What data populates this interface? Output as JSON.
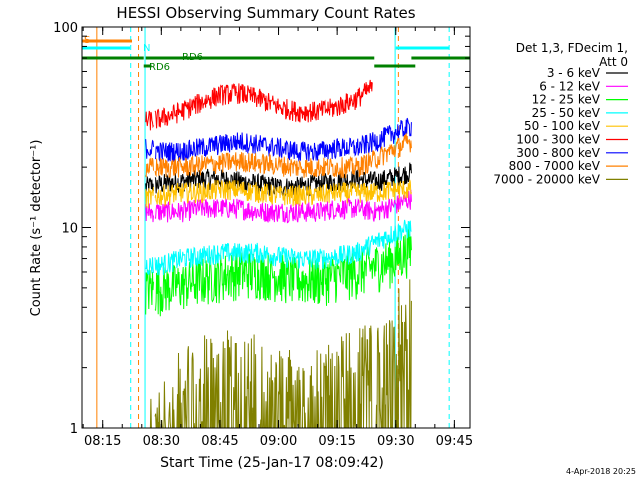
{
  "chart_data": {
    "type": "line",
    "title": "HESSI Observing Summary Count Rates",
    "xlabel": "Start Time (25-Jan-17 08:09:42)",
    "ylabel": "Count Rate (s⁻¹ detector⁻¹)",
    "y_scale": "log",
    "ylim": [
      1,
      100
    ],
    "xlim": [
      "08:09:42",
      "09:49:00"
    ],
    "x_tick_labels": [
      "08:15",
      "08:30",
      "08:45",
      "09:00",
      "09:15",
      "09:30",
      "09:45"
    ],
    "y_tick_labels": [
      "1",
      "10",
      "100"
    ],
    "timestamp": "4-Apr-2018 20:25",
    "legend": {
      "placement": "right",
      "header": [
        "Det 1,3, FDecim 1,",
        "Att 0"
      ],
      "entries": [
        {
          "label": "3 - 6 keV",
          "color": "#000000"
        },
        {
          "label": "6 - 12 keV",
          "color": "#ff00ff"
        },
        {
          "label": "12 - 25 keV",
          "color": "#00ff00"
        },
        {
          "label": "25 - 50 keV",
          "color": "#00ffff"
        },
        {
          "label": "50 - 100 keV",
          "color": "#ffc000"
        },
        {
          "label": "100 - 300 keV",
          "color": "#ff0000"
        },
        {
          "label": "300 - 800 keV",
          "color": "#0000ff"
        },
        {
          "label": "800 - 7000 keV",
          "color": "#ff8000"
        },
        {
          "label": "7000 - 20000 keV",
          "color": "#808000"
        }
      ]
    },
    "flag_labels": [
      {
        "text": "S",
        "color": "#ff8000"
      },
      {
        "text": "N",
        "color": "#00ffff"
      },
      {
        "text": "RD6",
        "color": "#008000"
      },
      {
        "text": "RD6",
        "color": "#008000"
      }
    ],
    "flag_bars": [
      {
        "name": "S",
        "color": "#ff8000",
        "intervals": [
          [
            "08:09:42",
            "08:22:30"
          ]
        ],
        "level": 1
      },
      {
        "name": "N",
        "color": "#00ffff",
        "intervals": [
          [
            "08:09:42",
            "08:22:00"
          ],
          [
            "09:30:00",
            "09:43:40"
          ]
        ],
        "level": 2
      },
      {
        "name": "RD6",
        "color": "#008000",
        "intervals": [
          [
            "08:09:42",
            "08:25:30"
          ],
          [
            "08:26:00",
            "09:24:30"
          ],
          [
            "09:34:00",
            "09:49:00"
          ]
        ],
        "level": 3
      },
      {
        "name": "RD6 lower",
        "color": "#008000",
        "intervals": [
          [
            "08:25:30",
            "08:27:30"
          ],
          [
            "09:24:30",
            "09:35:00"
          ]
        ],
        "level": 4
      }
    ],
    "vertical_lines": [
      {
        "time": "08:13:30",
        "color": "#ff8000",
        "style": "solid"
      },
      {
        "time": "08:22:10",
        "color": "#00ffff",
        "style": "dashed"
      },
      {
        "time": "08:24:10",
        "color": "#ff8000",
        "style": "dashed"
      },
      {
        "time": "08:25:50",
        "color": "#00ffff",
        "style": "solid"
      },
      {
        "time": "09:29:50",
        "color": "#00ffff",
        "style": "solid"
      },
      {
        "time": "09:30:40",
        "color": "#ff8000",
        "style": "dashed"
      },
      {
        "time": "09:43:40",
        "color": "#00ffff",
        "style": "dashed"
      }
    ],
    "data_interval": [
      "08:26:00",
      "09:34:30"
    ],
    "series": [
      {
        "name": "3 - 6 keV",
        "color": "#000000",
        "x": [
          "08:26",
          "08:30",
          "08:35",
          "08:40",
          "08:45",
          "08:50",
          "08:55",
          "09:00",
          "09:05",
          "09:10",
          "09:15",
          "09:20",
          "09:25",
          "09:30",
          "09:34"
        ],
        "y": [
          16,
          16.5,
          17,
          17.5,
          17.5,
          17,
          16.5,
          16,
          16,
          16.5,
          17,
          17.5,
          17,
          18,
          19
        ]
      },
      {
        "name": "6 - 12 keV",
        "color": "#ff00ff",
        "x": [
          "08:26",
          "08:30",
          "08:35",
          "08:40",
          "08:45",
          "08:50",
          "08:55",
          "09:00",
          "09:05",
          "09:10",
          "09:15",
          "09:20",
          "09:25",
          "09:30",
          "09:34"
        ],
        "y": [
          12,
          12,
          12,
          12.5,
          12.5,
          12.5,
          12,
          12,
          12,
          12,
          12.5,
          12.5,
          12,
          13,
          14
        ]
      },
      {
        "name": "12 - 25 keV",
        "color": "#00ff00",
        "x": [
          "08:26",
          "08:30",
          "08:35",
          "08:40",
          "08:45",
          "08:50",
          "08:55",
          "09:00",
          "09:05",
          "09:10",
          "09:15",
          "09:20",
          "09:25",
          "09:30",
          "09:34"
        ],
        "y": [
          5,
          5,
          5.2,
          5.5,
          5.8,
          6,
          6,
          5.8,
          5.5,
          5.5,
          5.8,
          6,
          6.5,
          7,
          8
        ]
      },
      {
        "name": "25 - 50 keV",
        "color": "#00ffff",
        "x": [
          "08:26",
          "08:30",
          "08:35",
          "08:40",
          "08:45",
          "08:50",
          "08:55",
          "09:00",
          "09:05",
          "09:10",
          "09:15",
          "09:20",
          "09:25",
          "09:30",
          "09:34"
        ],
        "y": [
          6.5,
          6.5,
          7,
          7.2,
          7.5,
          7.5,
          7.5,
          7.2,
          7,
          7,
          7.2,
          7.5,
          8.5,
          9.5,
          10
        ]
      },
      {
        "name": "50 - 100 keV",
        "color": "#ffc000",
        "x": [
          "08:26",
          "08:30",
          "08:35",
          "08:40",
          "08:45",
          "08:50",
          "08:55",
          "09:00",
          "09:05",
          "09:10",
          "09:15",
          "09:20",
          "09:25",
          "09:30",
          "09:34"
        ],
        "y": [
          14,
          14.5,
          15,
          15,
          15.5,
          15.5,
          15,
          14.5,
          14.5,
          14.5,
          15,
          15,
          15,
          15.5,
          15.5
        ]
      },
      {
        "name": "100 - 300 keV",
        "color": "#ff0000",
        "x": [
          "08:26",
          "08:30",
          "08:35",
          "08:40",
          "08:45",
          "08:50",
          "08:55",
          "09:00",
          "09:05",
          "09:10",
          "09:15",
          "09:20",
          "09:24"
        ],
        "y": [
          34,
          35,
          38,
          42,
          46,
          47,
          44,
          40,
          38,
          38,
          40,
          44,
          50
        ]
      },
      {
        "name": "300 - 800 keV",
        "color": "#0000ff",
        "x": [
          "08:26",
          "08:30",
          "08:35",
          "08:40",
          "08:45",
          "08:50",
          "08:55",
          "09:00",
          "09:05",
          "09:10",
          "09:15",
          "09:20",
          "09:25",
          "09:30",
          "09:34"
        ],
        "y": [
          25,
          24,
          24,
          25,
          26,
          27,
          26,
          25,
          24,
          24,
          25,
          25,
          27,
          30,
          32
        ]
      },
      {
        "name": "800 - 7000 keV",
        "color": "#ff8000",
        "x": [
          "08:26",
          "08:30",
          "08:35",
          "08:40",
          "08:45",
          "08:50",
          "08:55",
          "09:00",
          "09:05",
          "09:10",
          "09:15",
          "09:20",
          "09:25",
          "09:30",
          "09:34"
        ],
        "y": [
          20,
          20,
          20,
          20.5,
          21,
          21.5,
          21,
          20.5,
          20,
          20,
          20,
          20,
          22,
          25,
          27
        ]
      },
      {
        "name": "7000 - 20000 keV",
        "color": "#808000",
        "x": [
          "08:26",
          "08:30",
          "08:35",
          "08:40",
          "08:45",
          "08:50",
          "08:55",
          "09:00",
          "09:05",
          "09:10",
          "09:15",
          "09:20",
          "09:25",
          "09:30",
          "09:34"
        ],
        "y": [
          1,
          1,
          1.6,
          1.8,
          2,
          2,
          1.8,
          1.6,
          1.6,
          1.6,
          1.8,
          2,
          2.2,
          3,
          3.5
        ]
      }
    ]
  }
}
